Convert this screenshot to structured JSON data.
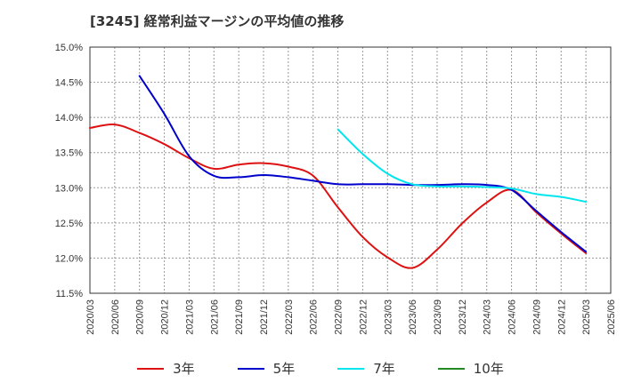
{
  "title": "[3245]  経常利益マージンの平均値の推移",
  "chart_data": {
    "type": "line",
    "title": "[3245]  経常利益マージンの平均値の推移",
    "xlabel": "",
    "ylabel": "",
    "grid": true,
    "legend_position": "bottom",
    "ylim": [
      11.5,
      15.0
    ],
    "x_ticks": [
      "2020/03",
      "2020/06",
      "2020/09",
      "2020/12",
      "2021/03",
      "2021/06",
      "2021/09",
      "2021/12",
      "2022/03",
      "2022/06",
      "2022/09",
      "2022/12",
      "2023/03",
      "2023/06",
      "2023/09",
      "2023/12",
      "2024/03",
      "2024/06",
      "2024/09",
      "2024/12",
      "2025/03",
      "2025/06"
    ],
    "y_ticks": [
      "11.5%",
      "12.0%",
      "12.5%",
      "13.0%",
      "13.5%",
      "14.0%",
      "14.5%",
      "15.0%"
    ],
    "y_tick_values": [
      11.5,
      12.0,
      12.5,
      13.0,
      13.5,
      14.0,
      14.5,
      15.0
    ],
    "series": [
      {
        "name": "3年",
        "color": "#dd1111",
        "x": [
          "2020/03",
          "2020/06",
          "2020/09",
          "2020/12",
          "2021/03",
          "2021/06",
          "2021/09",
          "2021/12",
          "2022/03",
          "2022/06",
          "2022/09",
          "2022/12",
          "2023/03",
          "2023/06",
          "2023/09",
          "2023/12",
          "2024/03",
          "2024/06",
          "2024/09",
          "2024/12",
          "2025/03"
        ],
        "values": [
          13.85,
          13.9,
          13.78,
          13.62,
          13.42,
          13.27,
          13.33,
          13.35,
          13.3,
          13.17,
          12.72,
          12.3,
          12.01,
          11.86,
          12.12,
          12.49,
          12.79,
          12.97,
          12.65,
          12.35,
          12.07
        ]
      },
      {
        "name": "5年",
        "color": "#0000cc",
        "x": [
          "2020/09",
          "2020/12",
          "2021/03",
          "2021/06",
          "2021/09",
          "2021/12",
          "2022/03",
          "2022/06",
          "2022/09",
          "2022/12",
          "2023/03",
          "2023/06",
          "2023/09",
          "2023/12",
          "2024/03",
          "2024/06",
          "2024/09",
          "2024/12",
          "2025/03"
        ],
        "values": [
          14.59,
          14.05,
          13.45,
          13.17,
          13.15,
          13.18,
          13.15,
          13.1,
          13.05,
          13.05,
          13.05,
          13.04,
          13.04,
          13.05,
          13.04,
          12.97,
          12.67,
          12.37,
          12.09
        ]
      },
      {
        "name": "7年",
        "color": "#00e5ee",
        "x": [
          "2022/09",
          "2022/12",
          "2023/03",
          "2023/06",
          "2023/09",
          "2023/12",
          "2024/03",
          "2024/06",
          "2024/09",
          "2024/12",
          "2025/03"
        ],
        "values": [
          13.83,
          13.48,
          13.2,
          13.05,
          13.02,
          13.02,
          13.01,
          12.99,
          12.91,
          12.87,
          12.8
        ]
      },
      {
        "name": "10年",
        "color": "#228822",
        "x": [],
        "values": []
      }
    ]
  }
}
